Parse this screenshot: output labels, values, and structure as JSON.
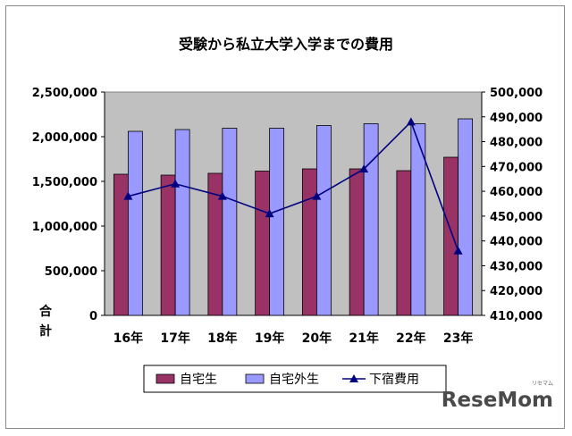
{
  "chart_data": {
    "type": "bar",
    "title": "受験から私立大学入学までの費用",
    "ylabel": "合計",
    "categories": [
      "16年",
      "17年",
      "18年",
      "19年",
      "20年",
      "21年",
      "22年",
      "23年"
    ],
    "series": [
      {
        "name": "自宅生",
        "type": "bar",
        "axis": "left",
        "color": "#993366",
        "values": [
          1580000,
          1570000,
          1590000,
          1615000,
          1640000,
          1640000,
          1620000,
          1770000
        ]
      },
      {
        "name": "自宅外生",
        "type": "bar",
        "axis": "left",
        "color": "#9999ff",
        "values": [
          2060000,
          2080000,
          2095000,
          2095000,
          2125000,
          2145000,
          2145000,
          2200000
        ]
      },
      {
        "name": "下宿費用",
        "type": "line",
        "axis": "right",
        "color": "#000080",
        "marker": "triangle",
        "values": [
          458000,
          463000,
          458000,
          451000,
          458000,
          469000,
          488000,
          436000
        ]
      }
    ],
    "left_axis": {
      "min": 0,
      "max": 2500000,
      "step": 500000,
      "tick_labels": [
        "0",
        "500,000",
        "1,000,000",
        "1,500,000",
        "2,000,000",
        "2,500,000"
      ]
    },
    "right_axis": {
      "min": 410000,
      "max": 500000,
      "step": 10000,
      "tick_labels": [
        "410,000",
        "420,000",
        "430,000",
        "440,000",
        "450,000",
        "460,000",
        "470,000",
        "480,000",
        "490,000",
        "500,000"
      ]
    },
    "grid": false,
    "plot_background": "#c0c0c0",
    "legend_position": "bottom"
  },
  "watermark": {
    "text": "ReseMom",
    "small_text": "リセマム"
  }
}
